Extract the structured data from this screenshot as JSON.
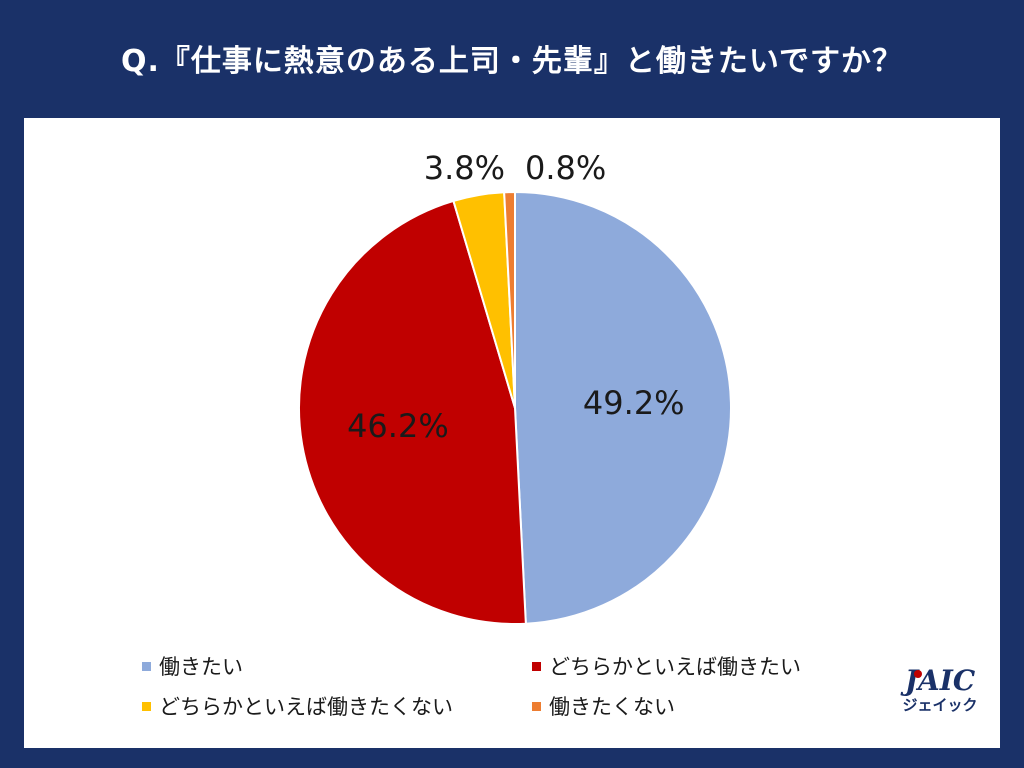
{
  "title": "Q.『仕事に熱意のある上司・先輩』と働きたいですか？",
  "chart_data": {
    "type": "pie",
    "categories": [
      "働きたい",
      "どちらかといえば働きたい",
      "どちらかといえば働きたくない",
      "働きたくない"
    ],
    "values": [
      49.2,
      46.2,
      3.8,
      0.8
    ],
    "labels": [
      "49.2%",
      "46.2%",
      "3.8%",
      "0.8%"
    ],
    "colors": [
      "#8eaadb",
      "#c00000",
      "#ffc000",
      "#ed7d31"
    ],
    "legend_position": "bottom"
  },
  "logo": {
    "main": "JAIC",
    "sub": "ジェイック"
  }
}
